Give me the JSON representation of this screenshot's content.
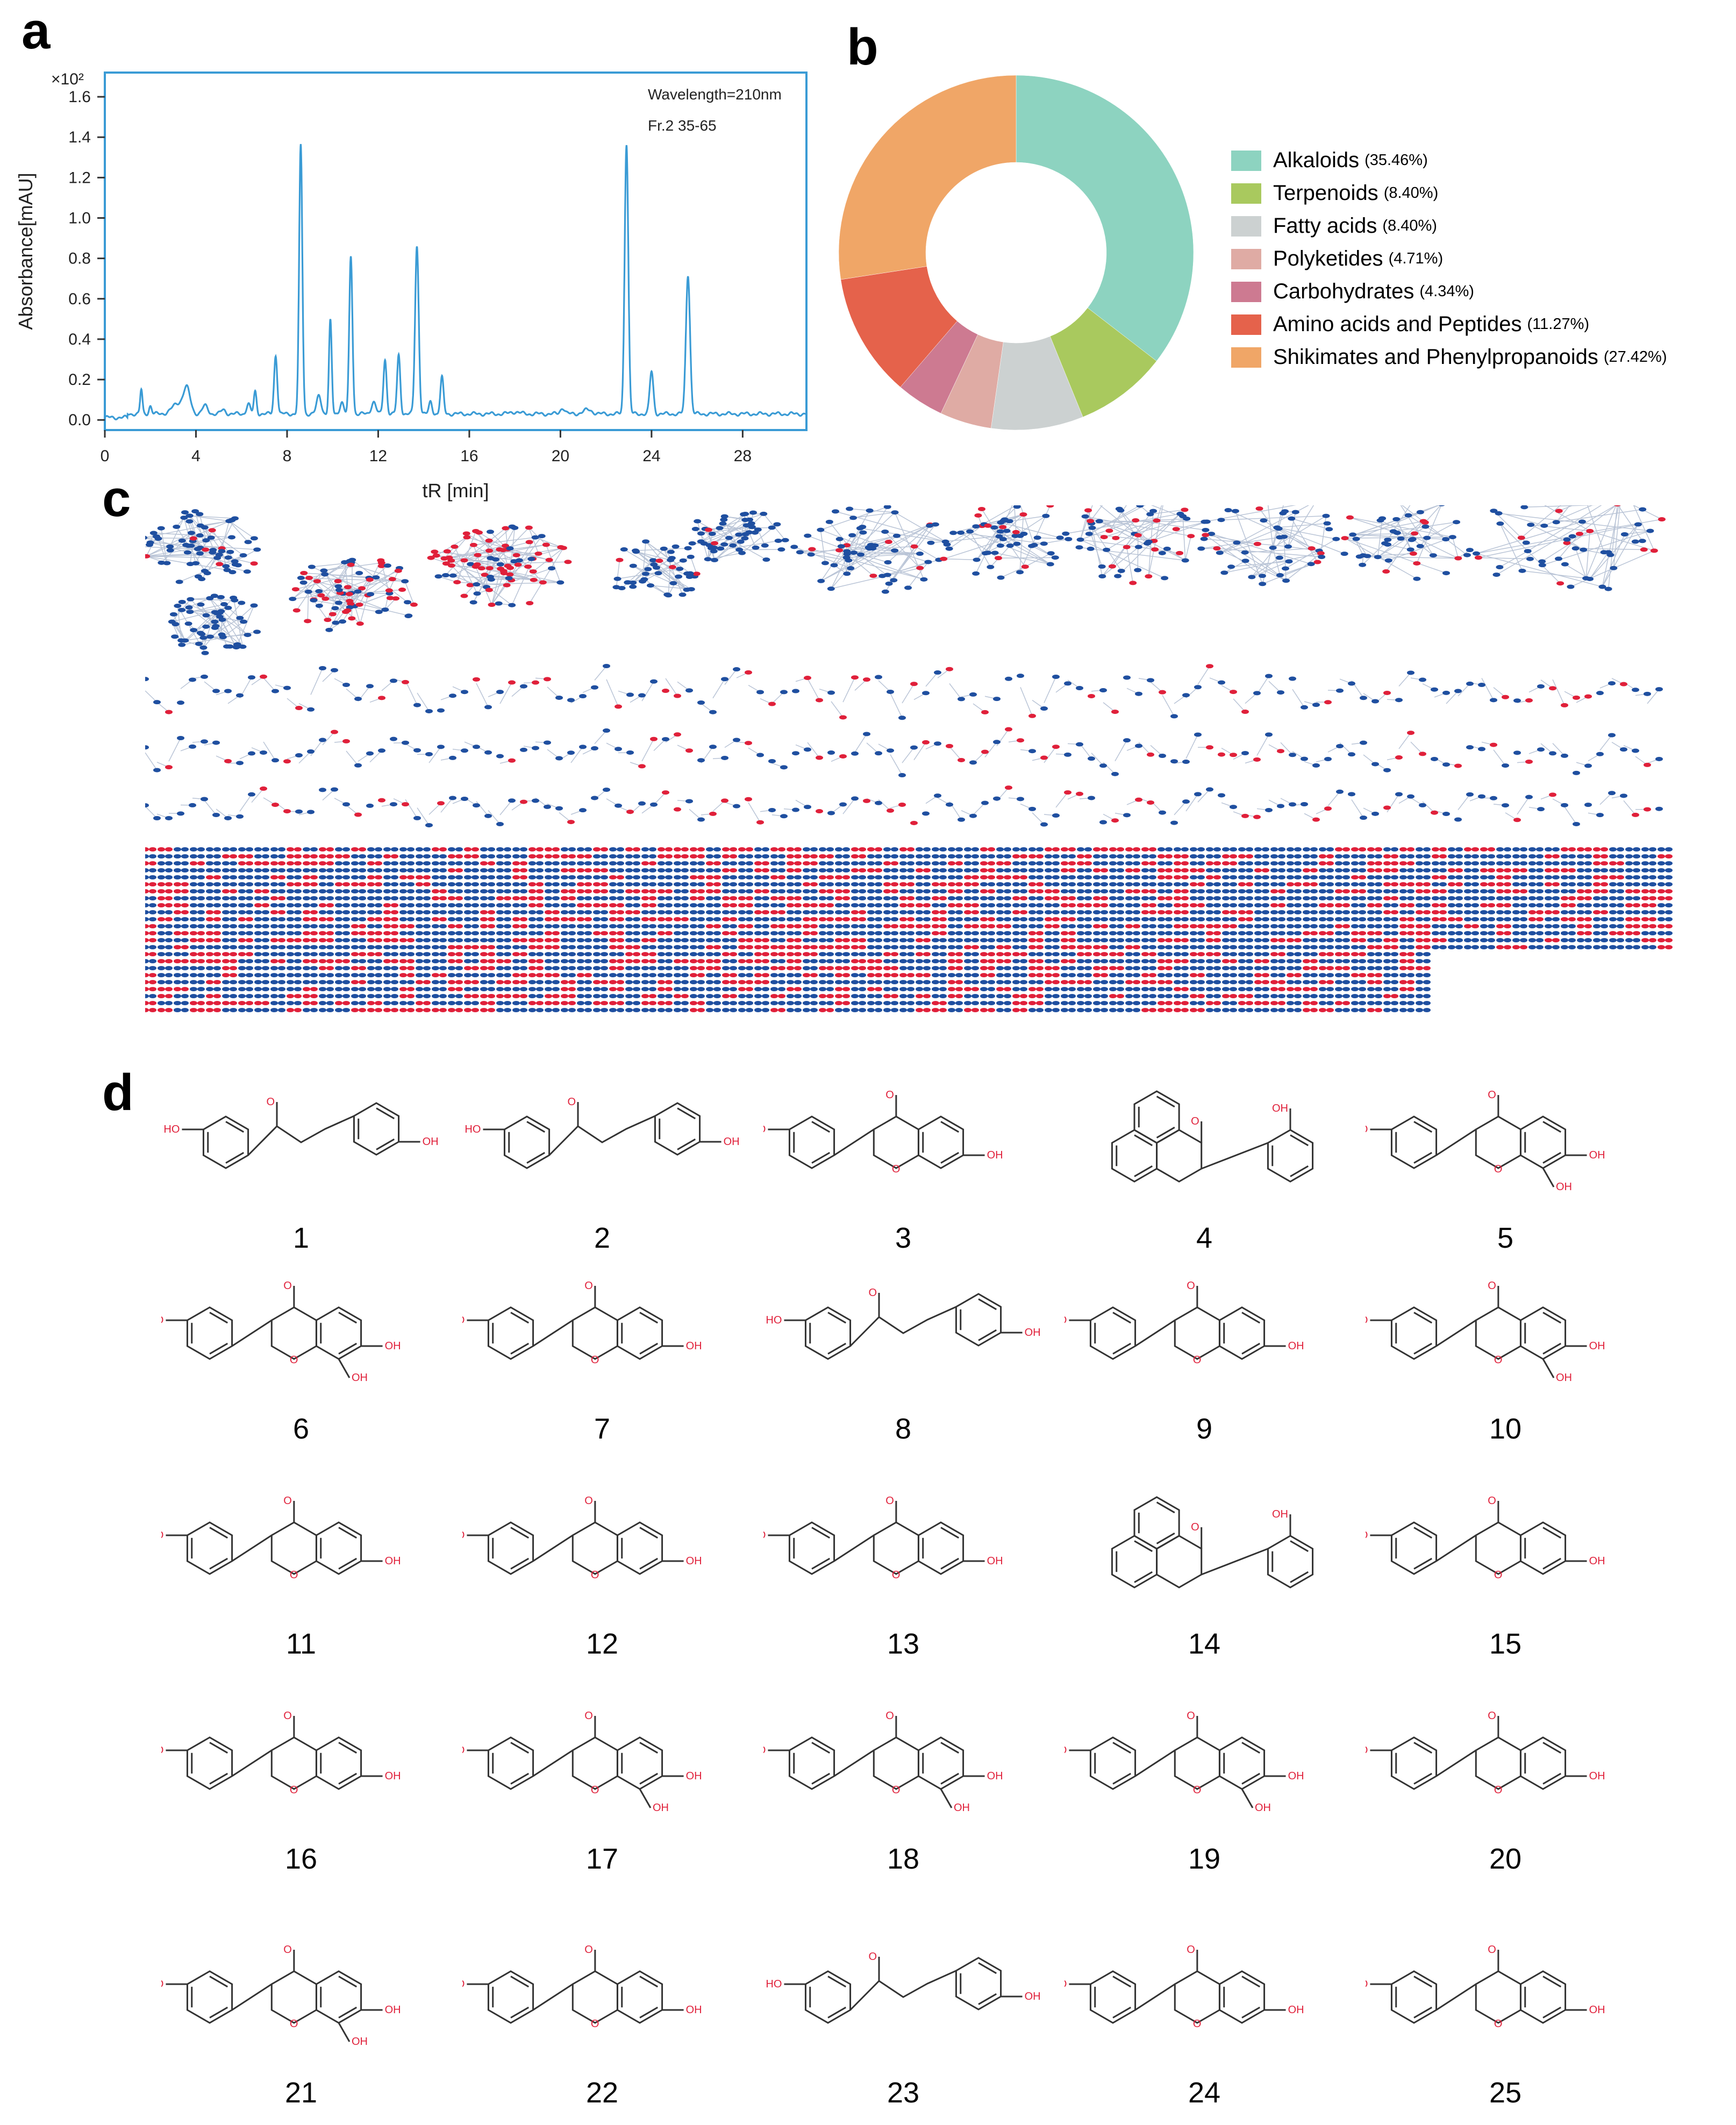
{
  "panel_a": {
    "letter": "a",
    "chart_data": {
      "type": "line",
      "title": "",
      "xlabel": "tR [min]",
      "ylabel": "Absorbance[mAU]",
      "y_multiplier": "×10²",
      "xlim": [
        0,
        30.8
      ],
      "ylim": [
        -0.05,
        1.72
      ],
      "x_ticks": [
        0,
        4,
        8,
        12,
        16,
        20,
        24,
        28
      ],
      "x_tick_labels": [
        "0",
        "4",
        "8",
        "12",
        "16",
        "20",
        "24",
        "28"
      ],
      "y_ticks": [
        0.0,
        0.2,
        0.4,
        0.6,
        0.8,
        1.0,
        1.2,
        1.4,
        1.6
      ],
      "y_tick_labels": [
        "0.0",
        "0.2",
        "0.4",
        "0.6",
        "0.8",
        "1.0",
        "1.2",
        "1.4",
        "1.6"
      ],
      "annotations": [
        "Wavelength=210nm",
        "Fr.2 35-65"
      ],
      "series": [
        {
          "name": "Fr.2 35-65",
          "color": "#3a9bd5",
          "baseline": 0.03,
          "peaks": [
            {
              "t": 1.6,
              "h": 0.12,
              "w": 0.05
            },
            {
              "t": 2.0,
              "h": 0.04,
              "w": 0.06
            },
            {
              "t": 3.2,
              "h": 0.05,
              "w": 0.25
            },
            {
              "t": 3.6,
              "h": 0.12,
              "w": 0.15
            },
            {
              "t": 4.4,
              "h": 0.04,
              "w": 0.12
            },
            {
              "t": 5.2,
              "h": 0.02,
              "w": 0.1
            },
            {
              "t": 6.3,
              "h": 0.05,
              "w": 0.08
            },
            {
              "t": 6.6,
              "h": 0.11,
              "w": 0.06
            },
            {
              "t": 7.5,
              "h": 0.29,
              "w": 0.07
            },
            {
              "t": 8.6,
              "h": 1.33,
              "w": 0.07
            },
            {
              "t": 9.4,
              "h": 0.09,
              "w": 0.1
            },
            {
              "t": 9.9,
              "h": 0.46,
              "w": 0.06
            },
            {
              "t": 10.4,
              "h": 0.06,
              "w": 0.08
            },
            {
              "t": 10.8,
              "h": 0.78,
              "w": 0.07
            },
            {
              "t": 11.8,
              "h": 0.06,
              "w": 0.1
            },
            {
              "t": 12.3,
              "h": 0.27,
              "w": 0.07
            },
            {
              "t": 12.9,
              "h": 0.29,
              "w": 0.07
            },
            {
              "t": 13.7,
              "h": 0.83,
              "w": 0.08
            },
            {
              "t": 14.3,
              "h": 0.06,
              "w": 0.07
            },
            {
              "t": 14.8,
              "h": 0.18,
              "w": 0.07
            },
            {
              "t": 18.0,
              "h": 0.01,
              "w": 0.2
            },
            {
              "t": 20.1,
              "h": 0.03,
              "w": 0.1
            },
            {
              "t": 21.2,
              "h": 0.02,
              "w": 0.2
            },
            {
              "t": 22.9,
              "h": 1.34,
              "w": 0.08
            },
            {
              "t": 24.0,
              "h": 0.21,
              "w": 0.08
            },
            {
              "t": 25.6,
              "h": 0.69,
              "w": 0.09
            }
          ]
        }
      ]
    }
  },
  "panel_b": {
    "letter": "b",
    "chart_data": {
      "type": "pie",
      "donut": true,
      "start_angle_deg": 0,
      "direction": "clockwise",
      "legend_position": "right",
      "slices": [
        {
          "name": "Alkaloids",
          "pct_label": "(35.46%)",
          "value": 35.46,
          "color": "#8dd3c0"
        },
        {
          "name": "Terpenoids",
          "pct_label": "(8.40%)",
          "value": 8.4,
          "color": "#a9c95e"
        },
        {
          "name": "Fatty acids",
          "pct_label": "(8.40%)",
          "value": 8.4,
          "color": "#ccd1d1"
        },
        {
          "name": "Polyketides",
          "pct_label": "(4.71%)",
          "value": 4.71,
          "color": "#dfaba4"
        },
        {
          "name": "Carbohydrates",
          "pct_label": "(4.34%)",
          "value": 4.34,
          "color": "#cd7a91"
        },
        {
          "name": "Amino acids and Peptides",
          "pct_label": "(11.27%)",
          "value": 11.27,
          "color": "#e5624b"
        },
        {
          "name": "Shikimates and Phenylpropanoids",
          "pct_label": "(27.42%)",
          "value": 27.42,
          "color": "#f0a667"
        }
      ]
    }
  },
  "panel_c": {
    "letter": "c",
    "node_colors": {
      "primary": "#1f4fa0",
      "highlight": "#e0203a"
    },
    "description_free_seed": 17
  },
  "panel_d": {
    "letter": "d",
    "structures": [
      {
        "label": "1",
        "kind": "chalcone"
      },
      {
        "label": "2",
        "kind": "chalcone"
      },
      {
        "label": "3",
        "kind": "flavone"
      },
      {
        "label": "4",
        "kind": "benzoflavone"
      },
      {
        "label": "5",
        "kind": "isoflavone"
      },
      {
        "label": "6",
        "kind": "isoflavone"
      },
      {
        "label": "7",
        "kind": "flavone"
      },
      {
        "label": "8",
        "kind": "chalcone"
      },
      {
        "label": "9",
        "kind": "flavone"
      },
      {
        "label": "10",
        "kind": "isoflavone"
      },
      {
        "label": "11",
        "kind": "flavone"
      },
      {
        "label": "12",
        "kind": "flavone"
      },
      {
        "label": "13",
        "kind": "flavone"
      },
      {
        "label": "14",
        "kind": "benzoflavone"
      },
      {
        "label": "15",
        "kind": "flavone"
      },
      {
        "label": "16",
        "kind": "flavone"
      },
      {
        "label": "17",
        "kind": "isoflavone"
      },
      {
        "label": "18",
        "kind": "isoflavone"
      },
      {
        "label": "19",
        "kind": "isoflavone"
      },
      {
        "label": "20",
        "kind": "flavone"
      },
      {
        "label": "21",
        "kind": "isoflavone"
      },
      {
        "label": "22",
        "kind": "flavone"
      },
      {
        "label": "23",
        "kind": "chalcone"
      },
      {
        "label": "24",
        "kind": "flavone"
      },
      {
        "label": "25",
        "kind": "flavone"
      }
    ]
  }
}
